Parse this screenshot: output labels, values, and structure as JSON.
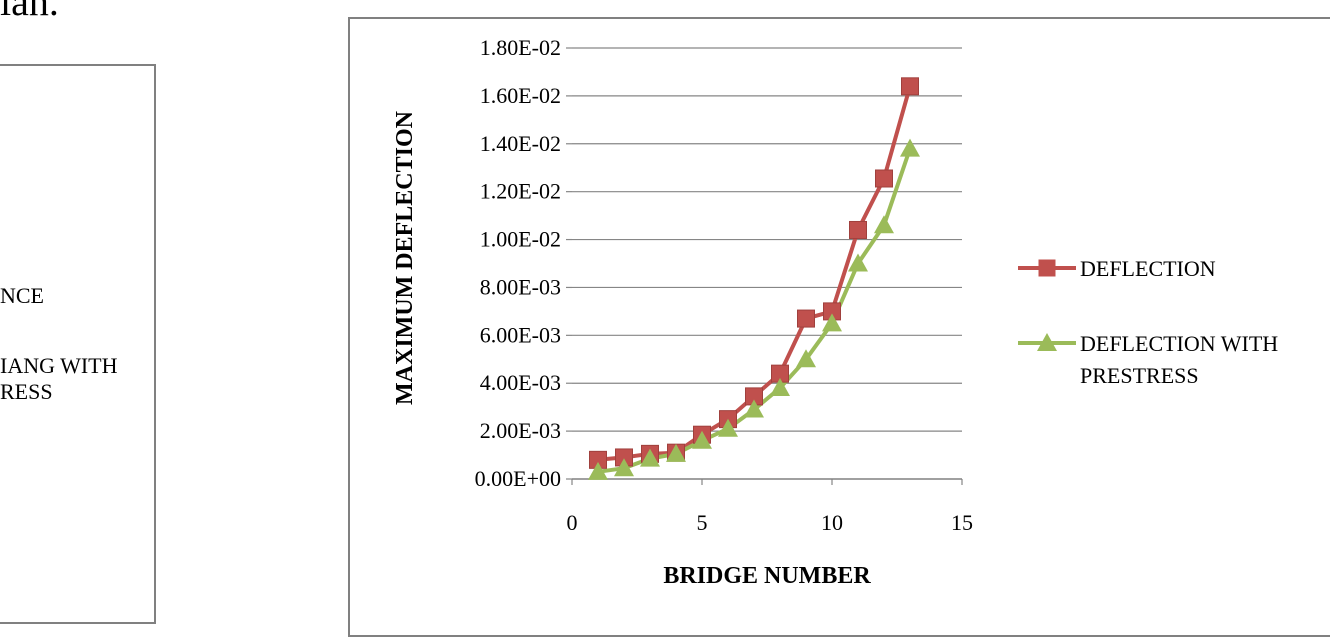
{
  "page": {
    "top_fragment": "ian.",
    "left_legend_fragments": [
      "NCE",
      "IANG WITH",
      "RESS"
    ]
  },
  "chart_data": {
    "type": "line",
    "xlabel": "BRIDGE NUMBER",
    "ylabel": "MAXIMUM DEFLECTION",
    "xlim": [
      0,
      15
    ],
    "ylim": [
      0,
      0.018
    ],
    "x_ticks": [
      "0",
      "5",
      "10",
      "15"
    ],
    "y_ticks": [
      "0.00E+00",
      "2.00E-03",
      "4.00E-03",
      "6.00E-03",
      "8.00E-03",
      "1.00E-02",
      "1.20E-02",
      "1.40E-02",
      "1.60E-02",
      "1.80E-02"
    ],
    "grid": "horizontal",
    "legend_position": "right",
    "series": [
      {
        "name": "DEFLECTION",
        "color": "#C0504D",
        "marker": "square",
        "x": [
          1,
          2,
          3,
          4,
          5,
          6,
          7,
          8,
          9,
          10,
          11,
          12,
          13
        ],
        "y": [
          0.0008,
          0.0009,
          0.00105,
          0.0011,
          0.00185,
          0.0025,
          0.00345,
          0.0044,
          0.0067,
          0.007,
          0.0104,
          0.01255,
          0.0164
        ]
      },
      {
        "name": "DEFLECTION WITH PRESTRESS",
        "legend_lines": [
          "DEFLECTION WITH",
          "PRESTRESS"
        ],
        "color": "#9BBB59",
        "marker": "triangle",
        "x": [
          1,
          2,
          3,
          4,
          5,
          6,
          7,
          8,
          9,
          10,
          11,
          12,
          13
        ],
        "y": [
          0.0003,
          0.00045,
          0.00085,
          0.00105,
          0.0016,
          0.0021,
          0.0029,
          0.0038,
          0.005,
          0.0065,
          0.009,
          0.0106,
          0.0138
        ]
      }
    ]
  }
}
